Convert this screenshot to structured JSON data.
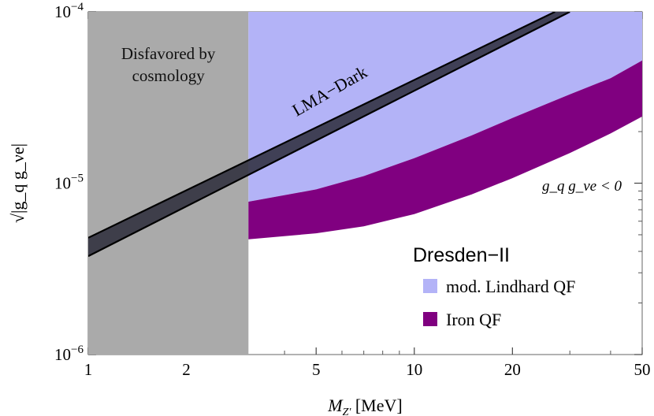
{
  "chart_data": {
    "type": "area",
    "title": "",
    "xlabel": "[MeV]",
    "xlabel_symbol": "M",
    "xlabel_sub": "Z'",
    "ylabel_symbol": "√|g_q g_νe|",
    "xscale": "log",
    "yscale": "log",
    "xlim": [
      1,
      50
    ],
    "ylim": [
      1e-06,
      0.0001
    ],
    "x_ticks": [
      {
        "value": 1,
        "label": "1"
      },
      {
        "value": 2,
        "label": "2"
      },
      {
        "value": 5,
        "label": "5"
      },
      {
        "value": 10,
        "label": "10"
      },
      {
        "value": 20,
        "label": "20"
      },
      {
        "value": 50,
        "label": "50"
      }
    ],
    "y_ticks": [
      {
        "value": 1e-06,
        "base": "10",
        "exp": "−6"
      },
      {
        "value": 1e-05,
        "base": "10",
        "exp": "−5"
      },
      {
        "value": 0.0001,
        "base": "10",
        "exp": "−4"
      }
    ],
    "cosmology_region": {
      "x_min": 1,
      "x_max": 3.1,
      "label_lines": [
        "Disfavored by",
        "cosmology"
      ],
      "color": "#aaaaaa"
    },
    "lma_dark_band": {
      "label": "LMA−Dark",
      "lower": [
        [
          1,
          3.75e-06
        ],
        [
          30,
          0.0001
        ]
      ],
      "upper": [
        [
          1,
          4.8e-06
        ],
        [
          27,
          0.0001
        ]
      ],
      "color": "#2b2b3a"
    },
    "legend": {
      "title": "Dresden−II",
      "placement": "bottom-right"
    },
    "series": [
      {
        "name": "mod. Lindhard QF",
        "color": "#b3b3f7",
        "lower": [
          [
            3.1,
            7.8e-06
          ],
          [
            5,
            9.2e-06
          ],
          [
            7,
            1.1e-05
          ],
          [
            10,
            1.4e-05
          ],
          [
            15,
            1.9e-05
          ],
          [
            20,
            2.4e-05
          ],
          [
            30,
            3.3e-05
          ],
          [
            40,
            4.1e-05
          ],
          [
            50,
            5.2e-05
          ]
        ],
        "upper": [
          [
            3.1,
            0.0001
          ],
          [
            50,
            0.0001
          ]
        ]
      },
      {
        "name": "Iron QF",
        "color": "#800080",
        "lower": [
          [
            3.1,
            4.7e-06
          ],
          [
            5,
            5.1e-06
          ],
          [
            7,
            5.6e-06
          ],
          [
            10,
            6.6e-06
          ],
          [
            15,
            8.6e-06
          ],
          [
            20,
            1.07e-05
          ],
          [
            30,
            1.5e-05
          ],
          [
            40,
            1.95e-05
          ],
          [
            50,
            2.45e-05
          ]
        ],
        "upper": [
          [
            3.1,
            7.8e-06
          ],
          [
            5,
            9.2e-06
          ],
          [
            7,
            1.1e-05
          ],
          [
            10,
            1.4e-05
          ],
          [
            15,
            1.9e-05
          ],
          [
            20,
            2.4e-05
          ],
          [
            30,
            3.3e-05
          ],
          [
            40,
            4.1e-05
          ],
          [
            50,
            5.2e-05
          ]
        ]
      }
    ],
    "annotation": "g_q g_νe < 0"
  }
}
